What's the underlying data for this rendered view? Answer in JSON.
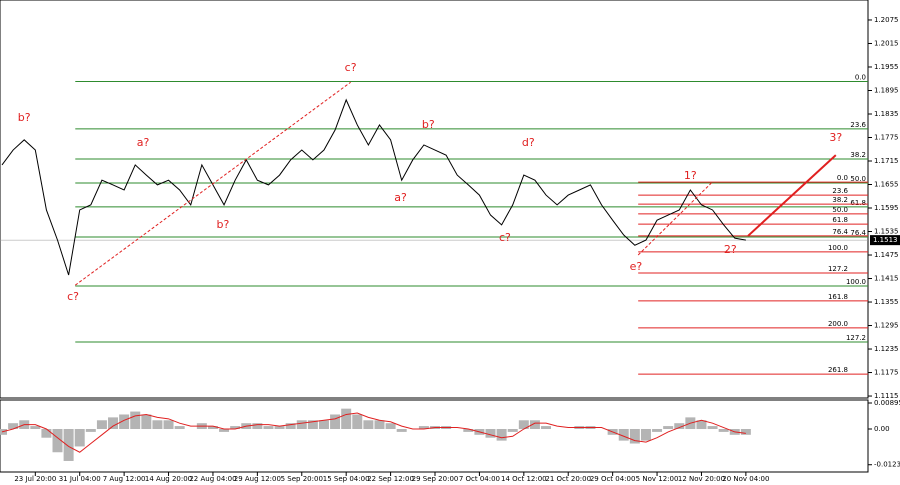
{
  "chart_data": [
    {
      "type": "line",
      "categories": [
        null,
        null,
        null,
        "23 Jul 20:00",
        null,
        null,
        null,
        "31 Jul 04:00",
        null,
        null,
        null,
        "7 Aug 12:00",
        null,
        null,
        null,
        "14 Aug 20:00",
        null,
        null,
        null,
        "22 Aug 04:00",
        null,
        null,
        null,
        "29 Aug 12:00",
        null,
        null,
        null,
        "5 Sep 20:00",
        null,
        null,
        null,
        "15 Sep 04:00",
        null,
        null,
        null,
        "22 Sep 12:00",
        null,
        null,
        null,
        "29 Sep 20:00",
        null,
        null,
        null,
        "7 Oct 04:00",
        null,
        null,
        null,
        "14 Oct 12:00",
        null,
        null,
        null,
        "21 Oct 20:00",
        null,
        null,
        null,
        "29 Oct 04:00",
        null,
        null,
        null,
        "5 Nov 12:00",
        null,
        null,
        null,
        "12 Nov 20:00",
        null,
        null,
        null,
        "20 Nov 04:00"
      ],
      "values": [
        1.1705,
        1.1743,
        1.1769,
        1.1743,
        1.159,
        1.1513,
        1.1424,
        1.159,
        1.1603,
        1.1666,
        1.1654,
        1.1641,
        1.1705,
        1.1679,
        1.1654,
        1.1666,
        1.1641,
        1.1603,
        1.1705,
        1.1654,
        1.1603,
        1.1666,
        1.1718,
        1.1666,
        1.1654,
        1.1679,
        1.1718,
        1.1743,
        1.1718,
        1.1743,
        1.1794,
        1.1871,
        1.1807,
        1.1756,
        1.1807,
        1.1769,
        1.1666,
        1.1718,
        1.1756,
        1.1743,
        1.173,
        1.1679,
        1.1654,
        1.1628,
        1.1577,
        1.1552,
        1.1603,
        1.1679,
        1.1666,
        1.1628,
        1.1603,
        1.1628,
        1.1641,
        1.1654,
        1.1603,
        1.1564,
        1.1526,
        1.15,
        1.1513,
        1.1564,
        1.1577,
        1.159,
        1.1641,
        1.1603,
        1.159,
        1.1552,
        1.1518,
        1.1513
      ],
      "color": "#000000",
      "xlim": [
        0,
        78
      ],
      "ylim": [
        1.111,
        1.2126
      ],
      "yticks": [
        1.2075,
        1.2015,
        1.1955,
        1.1895,
        1.1835,
        1.1775,
        1.1715,
        1.1655,
        1.1595,
        1.1535,
        1.1475,
        1.1415,
        1.1355,
        1.1295,
        1.1235,
        1.1175,
        1.1115
      ],
      "current_price": 1.1513,
      "fib_sets": [
        {
          "color": "#2e8b2e",
          "x_start": 6.6,
          "levels": [
            {
              "label": "0.0",
              "price": 1.1918
            },
            {
              "label": "23.6",
              "price": 1.1797
            },
            {
              "label": "38.2",
              "price": 1.172
            },
            {
              "label": "50.0",
              "price": 1.1659
            },
            {
              "label": "61.8",
              "price": 1.1598
            },
            {
              "label": "76.4",
              "price": 1.1521
            },
            {
              "label": "100.0",
              "price": 1.1396
            },
            {
              "label": "127.2",
              "price": 1.1253
            }
          ]
        },
        {
          "color": "#e02020",
          "x_start": 57.3,
          "levels": [
            {
              "label": "0.0",
              "price": 1.1661
            },
            {
              "label": "23.6",
              "price": 1.1628
            },
            {
              "label": "38.2",
              "price": 1.1605
            },
            {
              "label": "50.0",
              "price": 1.158
            },
            {
              "label": "61.8",
              "price": 1.1554
            },
            {
              "label": "76.4",
              "price": 1.1524
            },
            {
              "label": "100.0",
              "price": 1.1483
            },
            {
              "label": "127.2",
              "price": 1.1429
            },
            {
              "label": "161.8",
              "price": 1.1358
            },
            {
              "label": "200.0",
              "price": 1.1289
            },
            {
              "label": "261.8",
              "price": 1.1171
            }
          ]
        }
      ],
      "annotations": [
        {
          "text": "b?",
          "x": 2,
          "y": 1.1825
        },
        {
          "text": "c?",
          "x": 6.4,
          "y": 1.1368
        },
        {
          "text": "a?",
          "x": 12.7,
          "y": 1.1761
        },
        {
          "text": "b?",
          "x": 19.9,
          "y": 1.1552
        },
        {
          "text": "c?",
          "x": 31.4,
          "y": 1.1952
        },
        {
          "text": "b?",
          "x": 38.4,
          "y": 1.1807
        },
        {
          "text": "a?",
          "x": 35.9,
          "y": 1.162
        },
        {
          "text": "c?",
          "x": 45.3,
          "y": 1.1518
        },
        {
          "text": "d?",
          "x": 47.4,
          "y": 1.1761
        },
        {
          "text": "e?",
          "x": 57.1,
          "y": 1.1444
        },
        {
          "text": "1?",
          "x": 62,
          "y": 1.1677
        },
        {
          "text": "2?",
          "x": 65.6,
          "y": 1.1488
        },
        {
          "text": "3?",
          "x": 75.1,
          "y": 1.1774
        }
      ],
      "lines": [
        {
          "x1": 6.6,
          "y1": 1.1398,
          "x2": 31.4,
          "y2": 1.1916,
          "color": "#e02020",
          "dashed": true,
          "width": 1
        },
        {
          "x1": 57.3,
          "y1": 1.1475,
          "x2": 63.9,
          "y2": 1.1659,
          "color": "#e02020",
          "dashed": true,
          "width": 1
        },
        {
          "x1": 67.2,
          "y1": 1.1524,
          "x2": 75.1,
          "y2": 1.173,
          "color": "#e02020",
          "dashed": false,
          "width": 2
        }
      ]
    },
    {
      "type": "bar",
      "values": [
        -0.002,
        0.002,
        0.003,
        0.001,
        -0.003,
        -0.008,
        -0.011,
        -0.006,
        -0.001,
        0.003,
        0.004,
        0.005,
        0.006,
        0.005,
        0.003,
        0.003,
        0.001,
        0,
        0.002,
        0.001,
        -0.001,
        0.001,
        0.002,
        0.002,
        0.001,
        0.001,
        0.002,
        0.003,
        0.003,
        0.003,
        0.005,
        0.007,
        0.005,
        0.003,
        0.003,
        0.002,
        -0.001,
        0,
        0.001,
        0.001,
        0.001,
        0,
        -0.001,
        -0.002,
        -0.003,
        -0.004,
        -0.001,
        0.003,
        0.003,
        0.001,
        0,
        0,
        0.001,
        0.001,
        0,
        -0.002,
        -0.004,
        -0.005,
        -0.004,
        -0.001,
        0.001,
        0.002,
        0.004,
        0.003,
        0.001,
        -0.001,
        -0.002,
        -0.002
      ],
      "color": "#b4b4b4",
      "overlay": {
        "type": "line",
        "color": "#e02020",
        "values": [
          -0.001,
          0,
          0.0015,
          0.0015,
          0,
          -0.003,
          -0.006,
          -0.008,
          -0.005,
          -0.002,
          0.001,
          0.003,
          0.0045,
          0.005,
          0.004,
          0.0035,
          0.002,
          0.001,
          0.001,
          0.001,
          0,
          0,
          0.001,
          0.0015,
          0.0015,
          0.001,
          0.0015,
          0.002,
          0.0025,
          0.003,
          0.0035,
          0.005,
          0.0055,
          0.004,
          0.003,
          0.0025,
          0.001,
          0,
          0,
          0.0005,
          0.0005,
          0.0005,
          0,
          -0.001,
          -0.002,
          -0.003,
          -0.0025,
          0,
          0.002,
          0.002,
          0.001,
          0.0005,
          0.0005,
          0.0005,
          0.0005,
          -0.001,
          -0.0025,
          -0.004,
          -0.0045,
          -0.003,
          -0.001,
          0.0005,
          0.002,
          0.003,
          0.002,
          0.0005,
          -0.001,
          -0.0015
        ]
      },
      "ylim": [
        -0.0148,
        0.00998
      ],
      "yticks": [
        0.00895,
        {
          "value": 0,
          "label": "0.00"
        },
        -0.0123
      ]
    }
  ]
}
